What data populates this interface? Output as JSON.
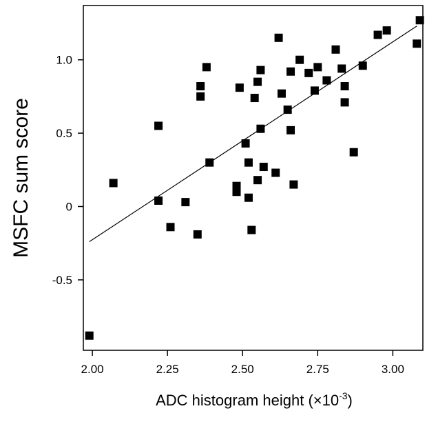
{
  "chart_data": {
    "type": "scatter",
    "title": "",
    "xlabel": "ADC histogram height (×10",
    "xlabel_superscript": "-3",
    "xlabel_suffix": ")",
    "ylabel": "MSFC sum score",
    "xlim": [
      1.97,
      3.1
    ],
    "ylim": [
      -0.98,
      1.37
    ],
    "x_ticks": [
      2.0,
      2.25,
      2.5,
      2.75,
      3.0
    ],
    "x_tick_labels": [
      "2.00",
      "2.25",
      "2.50",
      "2.75",
      "3.00"
    ],
    "y_ticks": [
      1.0,
      0.5,
      0,
      -0.5
    ],
    "y_tick_labels": [
      "1.0",
      "0.5",
      "0",
      "-0.5"
    ],
    "grid": false,
    "legend": "none",
    "point_color": "#000000",
    "line_color": "#000000",
    "fit_line": {
      "x": [
        1.99,
        3.08
      ],
      "y": [
        -0.24,
        1.23
      ]
    },
    "points": [
      {
        "x": 1.99,
        "y": -0.88
      },
      {
        "x": 2.07,
        "y": 0.16
      },
      {
        "x": 2.22,
        "y": 0.55
      },
      {
        "x": 2.22,
        "y": 0.04
      },
      {
        "x": 2.26,
        "y": -0.14
      },
      {
        "x": 2.31,
        "y": 0.03
      },
      {
        "x": 2.35,
        "y": -0.19
      },
      {
        "x": 2.36,
        "y": 0.82
      },
      {
        "x": 2.36,
        "y": 0.75
      },
      {
        "x": 2.38,
        "y": 0.95
      },
      {
        "x": 2.39,
        "y": 0.3
      },
      {
        "x": 2.48,
        "y": 0.14
      },
      {
        "x": 2.48,
        "y": 0.1
      },
      {
        "x": 2.49,
        "y": 0.81
      },
      {
        "x": 2.51,
        "y": 0.43
      },
      {
        "x": 2.52,
        "y": 0.3
      },
      {
        "x": 2.52,
        "y": 0.06
      },
      {
        "x": 2.53,
        "y": -0.16
      },
      {
        "x": 2.54,
        "y": 0.74
      },
      {
        "x": 2.55,
        "y": 0.18
      },
      {
        "x": 2.55,
        "y": 0.85
      },
      {
        "x": 2.56,
        "y": 0.93
      },
      {
        "x": 2.56,
        "y": 0.53
      },
      {
        "x": 2.57,
        "y": 0.27
      },
      {
        "x": 2.61,
        "y": 0.23
      },
      {
        "x": 2.62,
        "y": 1.15
      },
      {
        "x": 2.63,
        "y": 0.77
      },
      {
        "x": 2.65,
        "y": 0.66
      },
      {
        "x": 2.66,
        "y": 0.92
      },
      {
        "x": 2.66,
        "y": 0.52
      },
      {
        "x": 2.67,
        "y": 0.15
      },
      {
        "x": 2.69,
        "y": 1.0
      },
      {
        "x": 2.72,
        "y": 0.91
      },
      {
        "x": 2.74,
        "y": 0.79
      },
      {
        "x": 2.75,
        "y": 0.95
      },
      {
        "x": 2.78,
        "y": 0.86
      },
      {
        "x": 2.81,
        "y": 1.07
      },
      {
        "x": 2.83,
        "y": 0.94
      },
      {
        "x": 2.84,
        "y": 0.82
      },
      {
        "x": 2.84,
        "y": 0.71
      },
      {
        "x": 2.87,
        "y": 0.37
      },
      {
        "x": 2.9,
        "y": 0.96
      },
      {
        "x": 2.95,
        "y": 1.17
      },
      {
        "x": 2.98,
        "y": 1.2
      },
      {
        "x": 3.08,
        "y": 1.11
      },
      {
        "x": 3.09,
        "y": 1.27
      }
    ]
  }
}
